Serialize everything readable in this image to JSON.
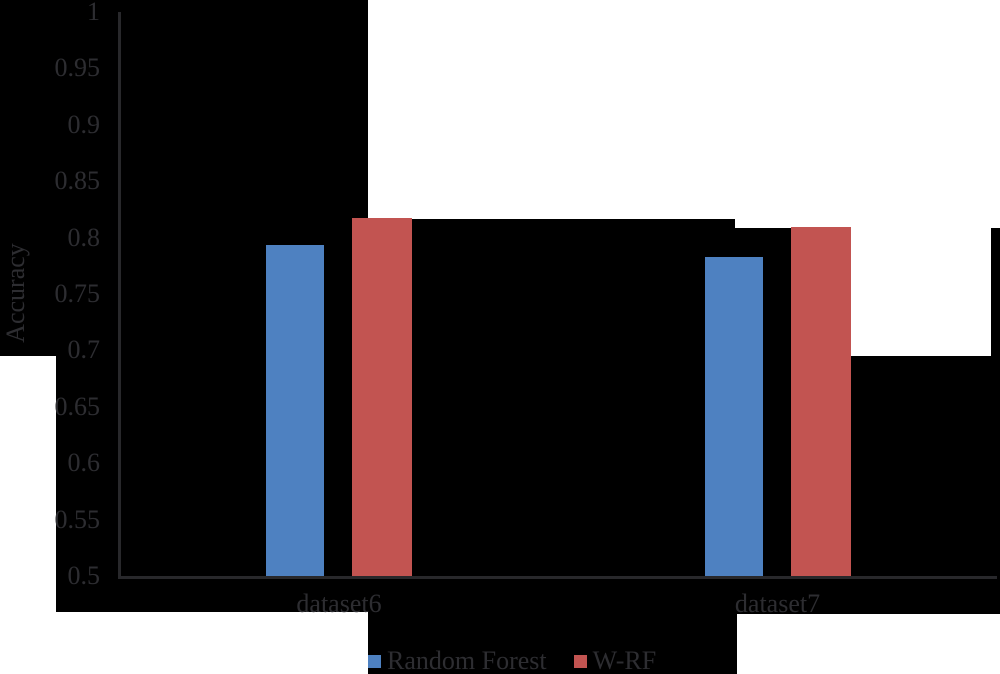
{
  "chart_data": {
    "type": "bar",
    "title": "",
    "categories": [
      "dataset6",
      "dataset7"
    ],
    "series": [
      {
        "name": "Random Forest",
        "color": "#4e81c1",
        "values": [
          0.793,
          0.783
        ]
      },
      {
        "name": "W-RF",
        "color": "#c25451",
        "values": [
          0.817,
          0.809
        ]
      }
    ],
    "xlabel": "",
    "ylabel": "Accuracy",
    "ylim": [
      0.5,
      1.0
    ],
    "yticks": [
      "1",
      "0.95",
      "0.9",
      "0.85",
      "0.8",
      "0.75",
      "0.7",
      "0.65",
      "0.6",
      "0.55",
      "0.5"
    ],
    "grid": false,
    "legend_position": "bottom"
  },
  "colors": {
    "background": "#000000",
    "patch": "#ffffff",
    "axis": "#28282b",
    "text": "#2d2d31",
    "series_blue": "#4e81c1",
    "series_red": "#c25451"
  }
}
